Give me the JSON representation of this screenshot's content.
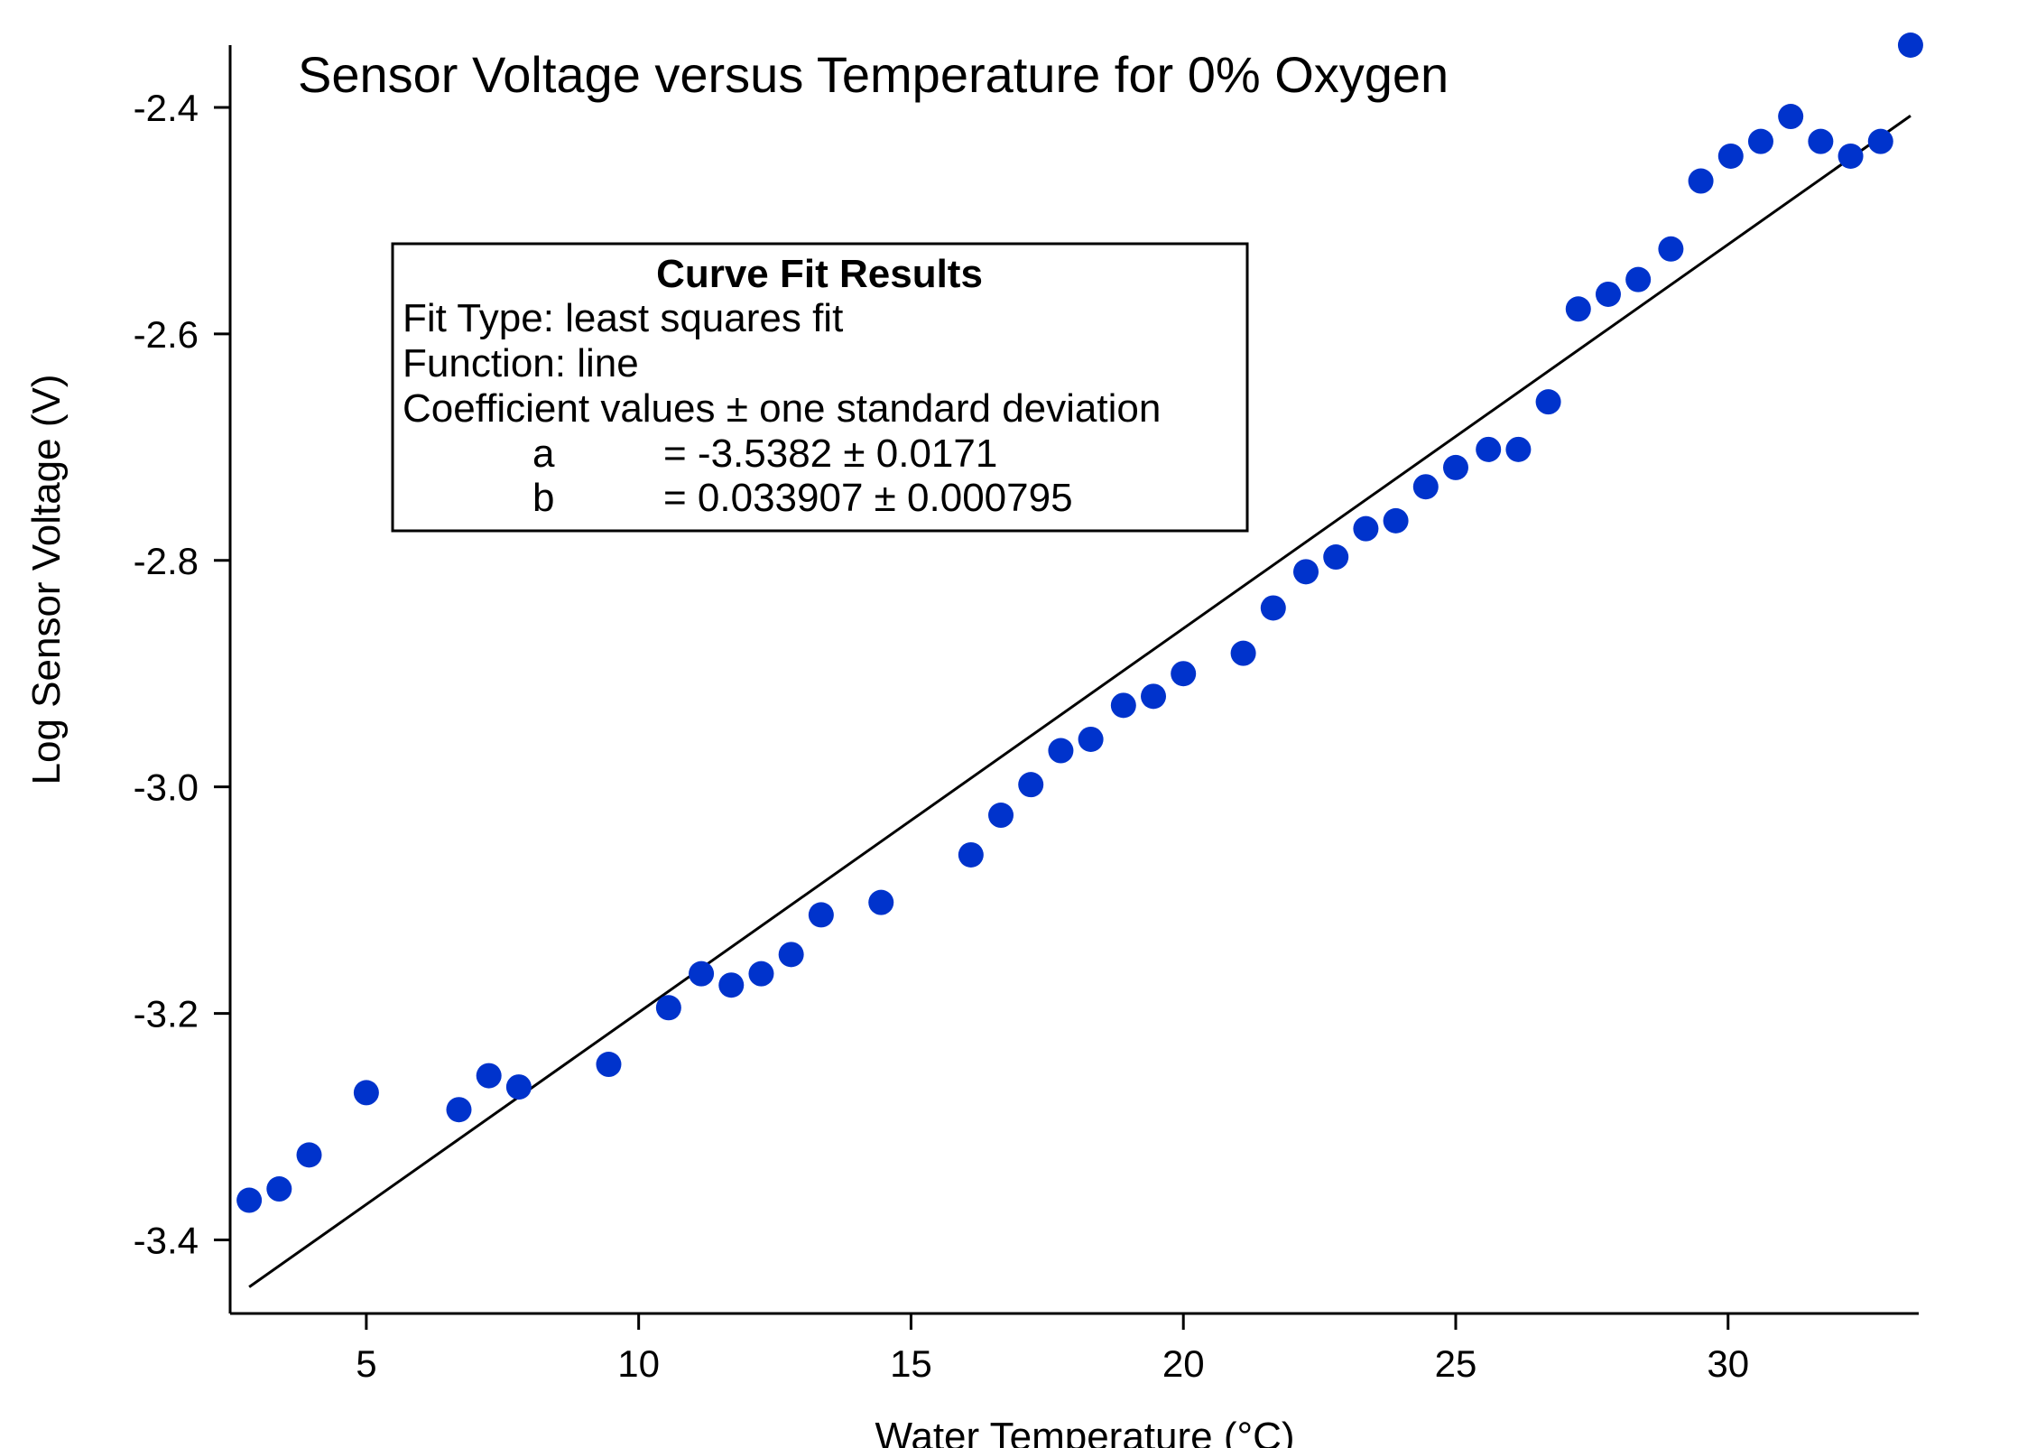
{
  "chart_data": {
    "type": "scatter",
    "title": "Sensor Voltage versus Temperature for 0% Oxygen",
    "xlabel": "Water Temperature (°C)",
    "ylabel": "Log Sensor Voltage (V)",
    "xlim": [
      2.5,
      33.5
    ],
    "ylim": [
      -3.465,
      -2.345
    ],
    "x_ticks": [
      5,
      10,
      15,
      20,
      25,
      30
    ],
    "y_ticks": [
      -3.4,
      -3.2,
      -3.0,
      -2.8,
      -2.6,
      -2.4
    ],
    "x_tick_labels": [
      "5",
      "10",
      "15",
      "20",
      "25",
      "30"
    ],
    "y_tick_labels": [
      "-3.4",
      "-3.2",
      "-3.0",
      "-2.8",
      "-2.6",
      "-2.4"
    ],
    "grid": false,
    "legend": "none",
    "series": [
      {
        "type": "scatter",
        "color": "#0033cc",
        "x": [
          2.85,
          3.4,
          3.95,
          5.0,
          6.7,
          7.25,
          7.8,
          9.45,
          10.55,
          11.15,
          11.7,
          12.25,
          12.8,
          13.35,
          14.45,
          16.1,
          16.65,
          17.2,
          17.75,
          18.3,
          18.9,
          19.45,
          20.0,
          21.1,
          21.65,
          22.25,
          22.8,
          23.35,
          23.9,
          24.45,
          25.0,
          25.6,
          26.15,
          26.7,
          27.25,
          27.8,
          28.35,
          28.95,
          29.5,
          30.05,
          30.6,
          31.15,
          31.7,
          32.25,
          32.8,
          33.35
        ],
        "y": [
          -3.365,
          -3.355,
          -3.325,
          -3.27,
          -3.285,
          -3.255,
          -3.265,
          -3.245,
          -3.195,
          -3.165,
          -3.175,
          -3.165,
          -3.148,
          -3.113,
          -3.102,
          -3.06,
          -3.025,
          -2.998,
          -2.968,
          -2.958,
          -2.928,
          -2.92,
          -2.9,
          -2.882,
          -2.842,
          -2.81,
          -2.797,
          -2.772,
          -2.765,
          -2.735,
          -2.718,
          -2.702,
          -2.702,
          -2.66,
          -2.578,
          -2.565,
          -2.552,
          -2.525,
          -2.465,
          -2.443,
          -2.43,
          -2.408,
          -2.43,
          -2.443,
          -2.43,
          -2.345
        ]
      },
      {
        "type": "line",
        "color": "#000000",
        "role": "least squares fit",
        "intercept": -3.5382,
        "slope": 0.033907,
        "x_range": [
          2.85,
          33.35
        ]
      }
    ],
    "annotations": [
      {
        "title": "Curve Fit Results",
        "lines": [
          "Fit Type: least squares fit",
          "Function: line",
          "Coefficient values ± one standard deviation"
        ],
        "coefficients": [
          {
            "name": "a",
            "value": "= -3.5382 ± 0.0171"
          },
          {
            "name": "b",
            "value": "= 0.033907 ± 0.000795"
          }
        ]
      }
    ]
  }
}
